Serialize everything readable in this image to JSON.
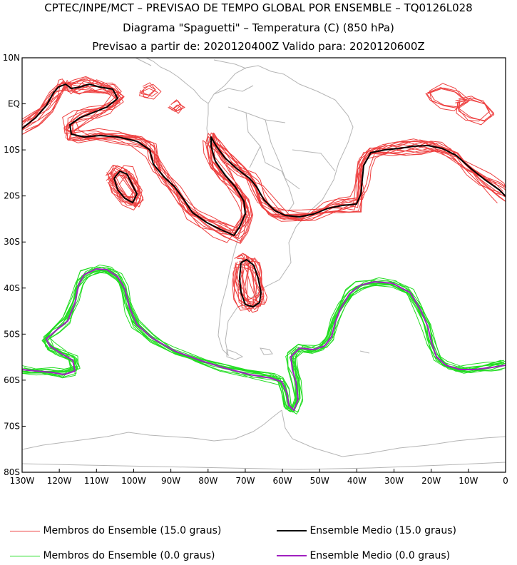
{
  "title": {
    "line1": "CPTEC/INPE/MCT – PREVISAO DE TEMPO GLOBAL POR ENSEMBLE – TQ0126L028",
    "line2": "Diagrama \"Spaguetti\" – Temperatura (C) (850 hPa)",
    "line3": "Previsao a partir de: 2020120400Z  Valido para: 2020120600Z"
  },
  "map": {
    "lon_range": [
      -130,
      0
    ],
    "lat_range": [
      -80,
      10
    ],
    "lat_labels": [
      "10N",
      "EQ",
      "10S",
      "20S",
      "30S",
      "40S",
      "50S",
      "60S",
      "70S",
      "80S"
    ],
    "lon_labels": [
      "130W",
      "120W",
      "110W",
      "100W",
      "90W",
      "80W",
      "70W",
      "60W",
      "50W",
      "40W",
      "30W",
      "20W",
      "10W",
      "0"
    ],
    "colors": {
      "coast": "#b5b5b5",
      "members_15": "#ee4040",
      "mean_15": "#000000",
      "members_0": "#22dd22",
      "mean_0": "#a020c0"
    }
  },
  "legend": [
    {
      "label": "Membros do Ensemble (15.0 graus)",
      "color": "#ee4040",
      "weight": 1
    },
    {
      "label": "Ensemble Medio (15.0 graus)",
      "color": "#000000",
      "weight": 2
    },
    {
      "label": "Membros do Ensemble (0.0 graus)",
      "color": "#22dd22",
      "weight": 1
    },
    {
      "label": "Ensemble Medio (0.0 graus)",
      "color": "#a020c0",
      "weight": 2
    }
  ]
}
